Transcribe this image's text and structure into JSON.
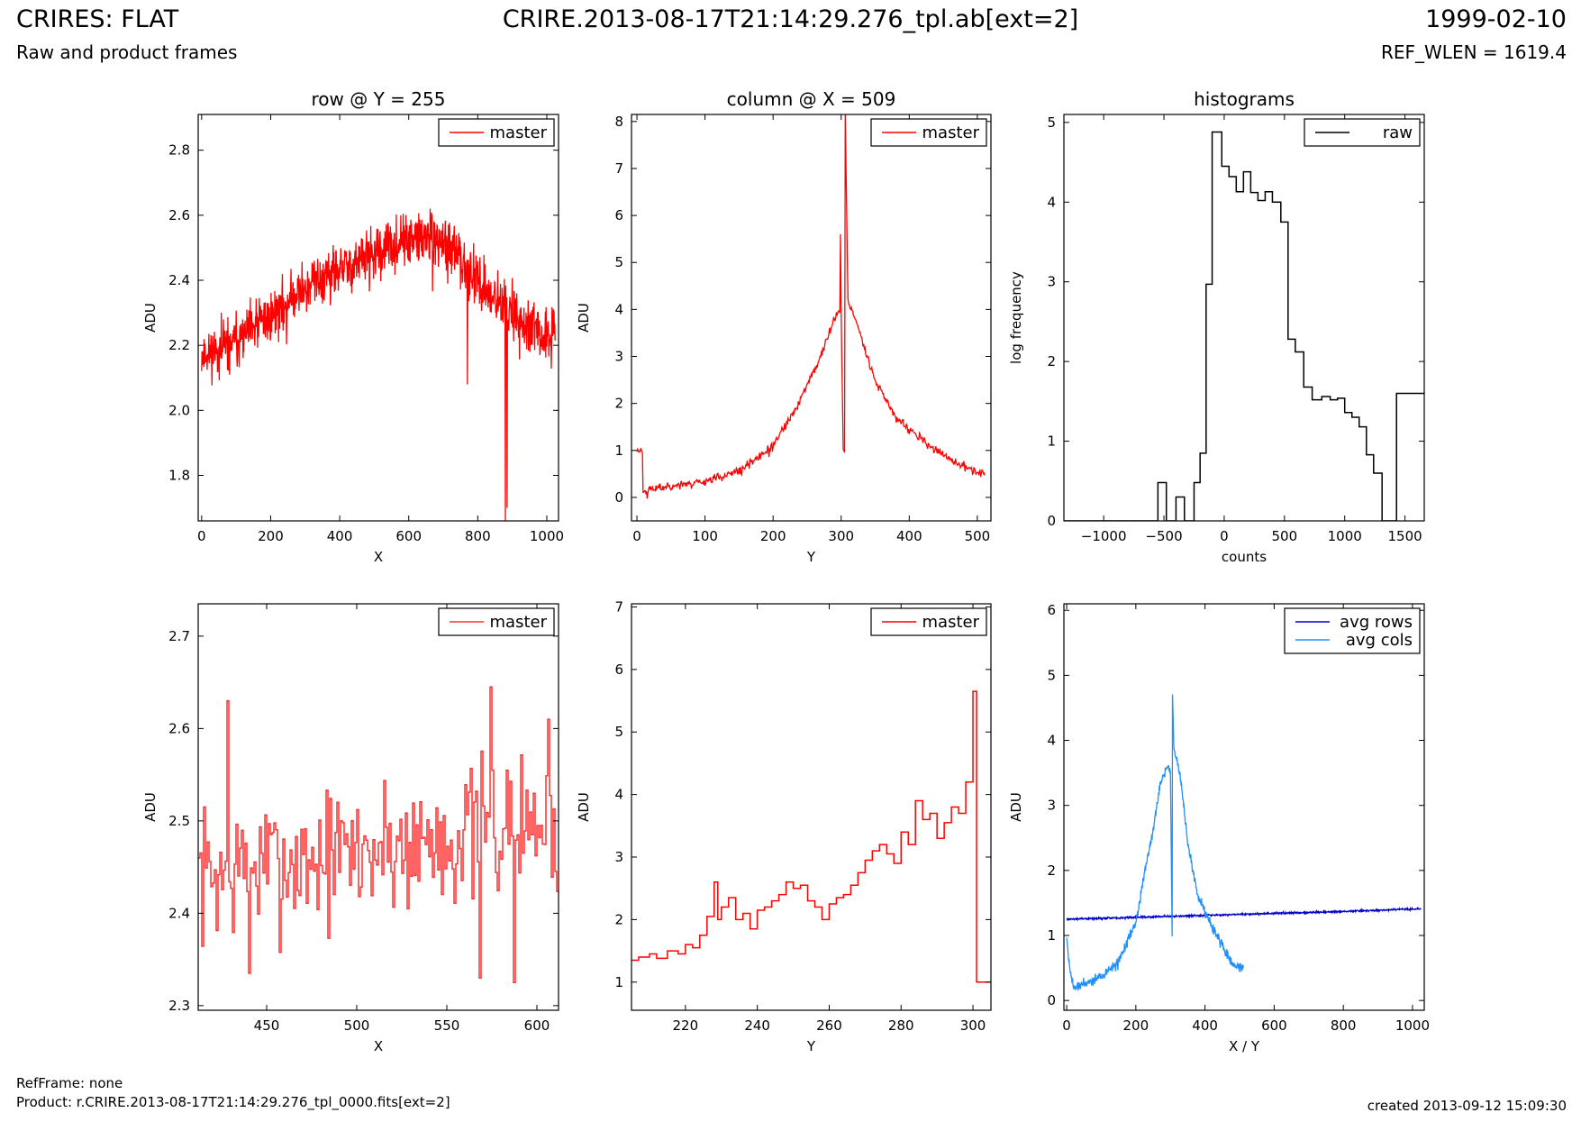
{
  "header": {
    "title": "CRIRES: FLAT",
    "subtitle": "Raw and product frames",
    "file": "CRIRE.2013-08-17T21:14:29.276_tpl.ab[ext=2]",
    "date": "1999-02-10",
    "ref_wlen": "REF_WLEN = 1619.4"
  },
  "footer": {
    "refframe": "RefFrame: none",
    "product": "Product: r.CRIRE.2013-08-17T21:14:29.276_tpl_0000.fits[ext=2]",
    "created": "created 2013-09-12 15:09:30"
  },
  "colors": {
    "red": "#ff0000",
    "black": "#000000",
    "blue": "#0000cc",
    "lightblue": "#1e90ff"
  },
  "chart_data": [
    {
      "id": "row",
      "type": "line",
      "title": "row @ Y = 255",
      "xlabel": "X",
      "ylabel": "ADU",
      "xlim": [
        -10,
        1034
      ],
      "ylim": [
        1.66,
        2.91
      ],
      "xticks": [
        0,
        200,
        400,
        600,
        800,
        1000
      ],
      "yticks": [
        1.8,
        2.0,
        2.2,
        2.4,
        2.6,
        2.8
      ],
      "legend": "top-right",
      "series": [
        {
          "name": "master",
          "color": "#ff0000",
          "style": "noisy",
          "x": [
            0,
            100,
            200,
            300,
            400,
            500,
            600,
            650,
            700,
            760,
            800,
            850,
            900,
            950,
            1000,
            1024
          ],
          "y": [
            2.17,
            2.21,
            2.29,
            2.38,
            2.43,
            2.48,
            2.52,
            2.53,
            2.51,
            2.46,
            2.4,
            2.34,
            2.3,
            2.25,
            2.22,
            2.25
          ],
          "noise": 0.06,
          "seed": 11,
          "spikes": [
            [
              770,
              2.08
            ],
            [
              880,
              1.66
            ],
            [
              885,
              1.7
            ]
          ]
        }
      ]
    },
    {
      "id": "col",
      "type": "line",
      "title": "column @ X = 509",
      "xlabel": "Y",
      "ylabel": "ADU",
      "xlim": [
        -8,
        520
      ],
      "ylim": [
        -0.5,
        8.15
      ],
      "xticks": [
        0,
        100,
        200,
        300,
        400,
        500
      ],
      "yticks": [
        0,
        1,
        2,
        3,
        4,
        5,
        6,
        7,
        8
      ],
      "legend": "top-right",
      "series": [
        {
          "name": "master",
          "color": "#ff0000",
          "style": "noisy",
          "x": [
            0,
            1,
            8,
            9,
            10,
            50,
            100,
            150,
            200,
            230,
            250,
            270,
            290,
            300,
            303,
            305,
            306,
            310,
            330,
            350,
            380,
            420,
            450,
            480,
            511
          ],
          "y": [
            1.0,
            1.0,
            1.0,
            0.15,
            0.15,
            0.25,
            0.35,
            0.55,
            1.1,
            1.8,
            2.4,
            3.0,
            3.8,
            4.0,
            1.0,
            1.0,
            8.15,
            4.2,
            3.4,
            2.5,
            1.7,
            1.2,
            0.9,
            0.65,
            0.5
          ],
          "noise": 0.07,
          "seed": 23,
          "spikes": [
            [
              299,
              5.6
            ]
          ]
        }
      ]
    },
    {
      "id": "hist",
      "type": "line",
      "title": "histograms",
      "xlabel": "counts",
      "ylabel": "log frequency",
      "xlim": [
        -1330,
        1660
      ],
      "ylim": [
        0,
        5.1
      ],
      "xticks": [
        -1000,
        -500,
        0,
        500,
        1000,
        1500
      ],
      "yticks": [
        0,
        1,
        2,
        3,
        4,
        5
      ],
      "legend": "top-right",
      "series": [
        {
          "name": "raw",
          "color": "#000000",
          "style": "step",
          "edges": [
            -1330,
            -550,
            -480,
            -400,
            -330,
            -250,
            -200,
            -150,
            -100,
            -20,
            40,
            100,
            160,
            220,
            280,
            340,
            400,
            470,
            530,
            590,
            660,
            730,
            810,
            880,
            940,
            1000,
            1060,
            1120,
            1180,
            1240,
            1310,
            1370,
            1430,
            1490,
            1560,
            1620,
            1660
          ],
          "values": [
            0,
            0.48,
            0,
            0.3,
            0,
            0.48,
            0.85,
            2.97,
            4.88,
            4.45,
            4.32,
            4.13,
            4.38,
            4.12,
            4.02,
            4.13,
            4.0,
            3.75,
            2.28,
            2.12,
            1.68,
            1.52,
            1.56,
            1.52,
            1.54,
            1.36,
            1.3,
            1.18,
            0.83,
            0.6,
            0.0,
            0.0,
            1.6,
            1.6,
            1.6,
            1.6
          ]
        }
      ]
    },
    {
      "id": "rowzoom",
      "type": "line",
      "xlabel": "X",
      "ylabel": "ADU",
      "xlim": [
        412,
        612
      ],
      "ylim": [
        2.295,
        2.735
      ],
      "xticks": [
        450,
        500,
        550,
        600
      ],
      "yticks": [
        2.3,
        2.4,
        2.5,
        2.6,
        2.7
      ],
      "legend": "top-right",
      "series": [
        {
          "name": "master",
          "color": "#ff3030",
          "style": "steprandom",
          "x0": 412,
          "x1": 612,
          "mean_start": 2.44,
          "mean_end": 2.5,
          "noise": 0.05,
          "seed": 7,
          "spikes": [
            [
              428,
              2.63
            ],
            [
              574,
              2.645
            ],
            [
              606,
              2.61
            ],
            [
              587,
              2.325
            ],
            [
              568,
              2.33
            ],
            [
              440,
              2.335
            ]
          ]
        }
      ]
    },
    {
      "id": "colzoom",
      "type": "line",
      "xlabel": "Y",
      "ylabel": "ADU",
      "xlim": [
        205,
        305
      ],
      "ylim": [
        0.55,
        7.05
      ],
      "xticks": [
        220,
        240,
        260,
        280,
        300
      ],
      "yticks": [
        1,
        2,
        3,
        4,
        5,
        6,
        7
      ],
      "legend": "top-right",
      "series": [
        {
          "name": "master",
          "color": "#ff0000",
          "style": "step",
          "edges": [
            205,
            207,
            210,
            212,
            215,
            218,
            220,
            222,
            224,
            226,
            228,
            229,
            230,
            232,
            234,
            236,
            238,
            240,
            242,
            244,
            246,
            248,
            250,
            252,
            254,
            256,
            258,
            260,
            262,
            264,
            266,
            268,
            270,
            272,
            274,
            276,
            278,
            280,
            282,
            284,
            286,
            288,
            290,
            292,
            294,
            296,
            298,
            300,
            301,
            302,
            305
          ],
          "values": [
            1.35,
            1.4,
            1.45,
            1.38,
            1.5,
            1.45,
            1.6,
            1.55,
            1.75,
            2.05,
            2.6,
            2.0,
            2.2,
            2.35,
            2.0,
            2.1,
            1.85,
            2.15,
            2.2,
            2.3,
            2.4,
            2.6,
            2.5,
            2.55,
            2.3,
            2.2,
            2.0,
            2.25,
            2.35,
            2.4,
            2.55,
            2.75,
            2.95,
            3.1,
            3.2,
            3.05,
            2.9,
            3.4,
            3.2,
            3.9,
            3.6,
            3.7,
            3.3,
            3.55,
            3.8,
            3.7,
            4.2,
            5.65,
            1.0,
            1.0
          ]
        }
      ]
    },
    {
      "id": "avg",
      "type": "line",
      "xlabel": "X / Y",
      "ylabel": "ADU",
      "xlim": [
        -8,
        1034
      ],
      "ylim": [
        -0.15,
        6.1
      ],
      "xticks": [
        0,
        200,
        400,
        600,
        800,
        1000
      ],
      "yticks": [
        0,
        1,
        2,
        3,
        4,
        5,
        6
      ],
      "legend": "top-right",
      "series": [
        {
          "name": "avg rows",
          "color": "#0000cc",
          "style": "noisy",
          "x": [
            0,
            200,
            400,
            600,
            800,
            1024
          ],
          "y": [
            1.25,
            1.28,
            1.31,
            1.34,
            1.37,
            1.41
          ],
          "noise": 0.01,
          "seed": 3,
          "spikes": []
        },
        {
          "name": "avg cols",
          "color": "#1e90ff",
          "style": "noisy",
          "x": [
            0,
            8,
            20,
            50,
            100,
            150,
            200,
            230,
            250,
            270,
            290,
            300,
            305,
            306,
            310,
            330,
            350,
            380,
            420,
            450,
            480,
            511
          ],
          "y": [
            1.0,
            0.5,
            0.2,
            0.25,
            0.38,
            0.6,
            1.2,
            2.1,
            2.6,
            3.3,
            3.6,
            3.5,
            1.0,
            4.75,
            3.9,
            3.4,
            2.4,
            1.6,
            1.15,
            0.85,
            0.55,
            0.5
          ],
          "noise": 0.06,
          "seed": 19,
          "spikes": []
        }
      ]
    }
  ]
}
